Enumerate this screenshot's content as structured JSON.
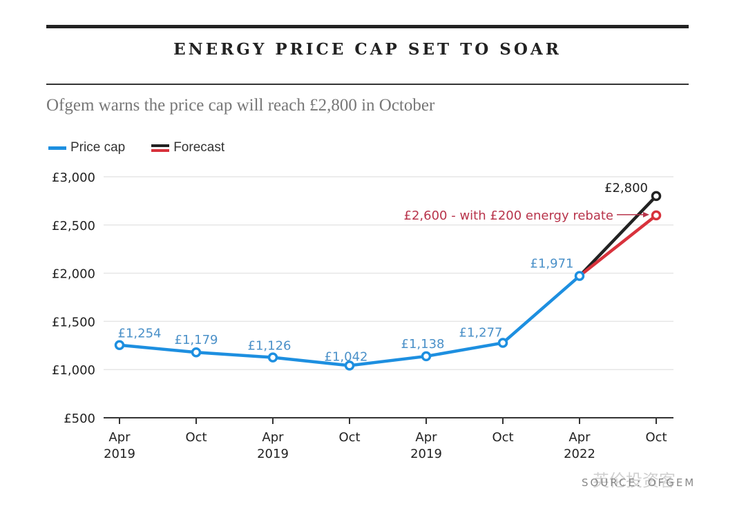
{
  "header": {
    "title": "ENERGY PRICE CAP SET TO SOAR",
    "subtitle": "Ofgem warns the price cap will reach £2,800 in October"
  },
  "legend": {
    "items": [
      {
        "label": "Price cap",
        "icon": "blue-line-swatch"
      },
      {
        "label": "Forecast",
        "icon": "black-red-line-swatch"
      }
    ]
  },
  "colors": {
    "price_cap": "#1d8fe0",
    "forecast": "#222222",
    "rebate": "#d8323c",
    "price_label": "#4a90c8",
    "rebate_label": "#b8344b"
  },
  "source": "SOURCE: OFGEM",
  "watermark": "英伦投资客",
  "chart_data": {
    "type": "line",
    "title": "ENERGY PRICE CAP SET TO SOAR",
    "subtitle": "Ofgem warns the price cap will reach £2,800 in October",
    "xlabel": "",
    "ylabel": "",
    "ylim": [
      500,
      3000
    ],
    "yticks": [
      500,
      1000,
      1500,
      2000,
      2500,
      3000
    ],
    "ytick_labels": [
      "£500",
      "£1,000",
      "£1,500",
      "£2,000",
      "£2,500",
      "£3,000"
    ],
    "grid": true,
    "legend_position": "top-left",
    "categories": [
      {
        "line1": "Apr",
        "line2": "2019"
      },
      {
        "line1": "Oct",
        "line2": ""
      },
      {
        "line1": "Apr",
        "line2": "2019"
      },
      {
        "line1": "Oct",
        "line2": ""
      },
      {
        "line1": "Apr",
        "line2": "2019"
      },
      {
        "line1": "Oct",
        "line2": ""
      },
      {
        "line1": "Apr",
        "line2": "2022"
      },
      {
        "line1": "Oct",
        "line2": ""
      }
    ],
    "series": [
      {
        "name": "Price cap",
        "x_index": [
          0,
          1,
          2,
          3,
          4,
          5,
          6
        ],
        "values": [
          1254,
          1179,
          1126,
          1042,
          1138,
          1277,
          1971
        ],
        "labels": [
          "£1,254",
          "£1,179",
          "£1,126",
          "£1,042",
          "£1,138",
          "£1,277",
          "£1,971"
        ]
      },
      {
        "name": "Forecast",
        "x_index": [
          6,
          7
        ],
        "values": [
          1971,
          2800
        ],
        "labels": [
          "",
          "£2,800"
        ]
      },
      {
        "name": "Forecast with rebate",
        "x_index": [
          6,
          7
        ],
        "values": [
          1971,
          2600
        ],
        "labels": [
          "",
          "£2,600 - with £200 energy rebate"
        ]
      }
    ],
    "annotations": [
      {
        "text": "£2,600 - with £200 energy rebate",
        "points_to": {
          "x_index": 7,
          "value": 2600
        }
      }
    ]
  }
}
